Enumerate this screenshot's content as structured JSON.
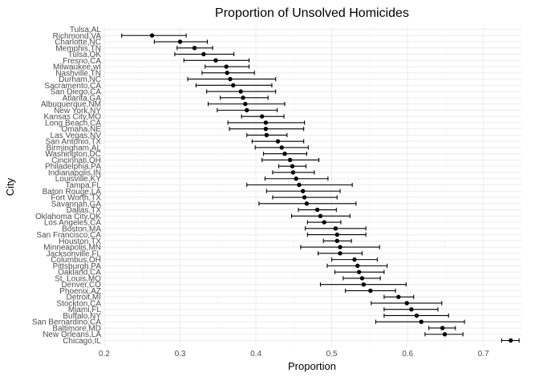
{
  "chart_data": {
    "type": "scatter",
    "title": "Proportion of Unsolved Homicides",
    "xlabel": "Proportion",
    "ylabel": "City",
    "xlim": [
      0.2,
      0.75
    ],
    "x_ticks": [
      0.2,
      0.3,
      0.4,
      0.5,
      0.6,
      0.7
    ],
    "x_tick_labels": [
      "0.2",
      "0.3",
      "0.4",
      "0.5",
      "0.6",
      "0.7"
    ],
    "grid": true,
    "cities": [
      {
        "city": "Tulsa,AL",
        "estimate": null,
        "low": null,
        "high": null
      },
      {
        "city": "Richmond,VA",
        "estimate": 0.263,
        "low": 0.223,
        "high": 0.308
      },
      {
        "city": "Charlotte,NC",
        "estimate": 0.3,
        "low": 0.266,
        "high": 0.336
      },
      {
        "city": "Memphis,TN",
        "estimate": 0.319,
        "low": 0.296,
        "high": 0.343
      },
      {
        "city": "Tulsa,OK",
        "estimate": 0.331,
        "low": 0.293,
        "high": 0.371
      },
      {
        "city": "Fresno,CA",
        "estimate": 0.347,
        "low": 0.305,
        "high": 0.391
      },
      {
        "city": "Milwaukee,wI",
        "estimate": 0.361,
        "low": 0.333,
        "high": 0.391
      },
      {
        "city": "Nashville,TN",
        "estimate": 0.362,
        "low": 0.329,
        "high": 0.398
      },
      {
        "city": "Durham,NC",
        "estimate": 0.366,
        "low": 0.31,
        "high": 0.426
      },
      {
        "city": "Sacramento,CA",
        "estimate": 0.37,
        "low": 0.321,
        "high": 0.421
      },
      {
        "city": "San Diego,CA",
        "estimate": 0.38,
        "low": 0.335,
        "high": 0.426
      },
      {
        "city": "Atlanta,GA",
        "estimate": 0.383,
        "low": 0.353,
        "high": 0.416
      },
      {
        "city": "Albuquerque,NM",
        "estimate": 0.386,
        "low": 0.337,
        "high": 0.438
      },
      {
        "city": "New York,NY",
        "estimate": 0.388,
        "low": 0.349,
        "high": 0.428
      },
      {
        "city": "Kansas City,MO",
        "estimate": 0.408,
        "low": 0.381,
        "high": 0.437
      },
      {
        "city": "Long Beach,CA",
        "estimate": 0.413,
        "low": 0.363,
        "high": 0.464
      },
      {
        "city": "Omaha,NE",
        "estimate": 0.413,
        "low": 0.365,
        "high": 0.463
      },
      {
        "city": "Las Vegas,NV",
        "estimate": 0.414,
        "low": 0.388,
        "high": 0.441
      },
      {
        "city": "San Antonio,TX",
        "estimate": 0.429,
        "low": 0.395,
        "high": 0.463
      },
      {
        "city": "Birmingham,AL",
        "estimate": 0.434,
        "low": 0.399,
        "high": 0.469
      },
      {
        "city": "Washington,DC",
        "estimate": 0.438,
        "low": 0.41,
        "high": 0.467
      },
      {
        "city": "Cincinnati,OH",
        "estimate": 0.445,
        "low": 0.408,
        "high": 0.483
      },
      {
        "city": "Philadelphia,PA",
        "estimate": 0.448,
        "low": 0.43,
        "high": 0.466
      },
      {
        "city": "Indianapolis,IN",
        "estimate": 0.449,
        "low": 0.422,
        "high": 0.477
      },
      {
        "city": "Louisville,KY",
        "estimate": 0.453,
        "low": 0.412,
        "high": 0.495
      },
      {
        "city": "Tampa,FL",
        "estimate": 0.457,
        "low": 0.388,
        "high": 0.527
      },
      {
        "city": "Baton Rouge,LA",
        "estimate": 0.462,
        "low": 0.414,
        "high": 0.511
      },
      {
        "city": "Fort Worth,TX",
        "estimate": 0.464,
        "low": 0.422,
        "high": 0.507
      },
      {
        "city": "Savannah,GA",
        "estimate": 0.467,
        "low": 0.404,
        "high": 0.532
      },
      {
        "city": "Dallas,TX",
        "estimate": 0.481,
        "low": 0.456,
        "high": 0.506
      },
      {
        "city": "Oklahoma City,OK",
        "estimate": 0.485,
        "low": 0.447,
        "high": 0.524
      },
      {
        "city": "Los Angeles,CA",
        "estimate": 0.49,
        "low": 0.468,
        "high": 0.512
      },
      {
        "city": "Boston,MA",
        "estimate": 0.505,
        "low": 0.465,
        "high": 0.545
      },
      {
        "city": "San Francisco,CA",
        "estimate": 0.507,
        "low": 0.468,
        "high": 0.545
      },
      {
        "city": "Houston,TX",
        "estimate": 0.507,
        "low": 0.489,
        "high": 0.526
      },
      {
        "city": "Minneapolis,MN",
        "estimate": 0.511,
        "low": 0.459,
        "high": 0.563
      },
      {
        "city": "Jacksonville,FL",
        "estimate": 0.511,
        "low": 0.482,
        "high": 0.54
      },
      {
        "city": "Columbus,OH",
        "estimate": 0.53,
        "low": 0.5,
        "high": 0.56
      },
      {
        "city": "Pittsburgh,PA",
        "estimate": 0.534,
        "low": 0.494,
        "high": 0.573
      },
      {
        "city": "Oakland,CA",
        "estimate": 0.536,
        "low": 0.504,
        "high": 0.569
      },
      {
        "city": "St. Louis,MO",
        "estimate": 0.54,
        "low": 0.515,
        "high": 0.564
      },
      {
        "city": "Denver,CO",
        "estimate": 0.542,
        "low": 0.485,
        "high": 0.598
      },
      {
        "city": "Phoenix,AZ",
        "estimate": 0.551,
        "low": 0.518,
        "high": 0.584
      },
      {
        "city": "Detroit,MI",
        "estimate": 0.588,
        "low": 0.569,
        "high": 0.608
      },
      {
        "city": "Stockton,CA",
        "estimate": 0.599,
        "low": 0.552,
        "high": 0.645
      },
      {
        "city": "Miami,FL",
        "estimate": 0.605,
        "low": 0.569,
        "high": 0.64
      },
      {
        "city": "Buffalo,NY",
        "estimate": 0.612,
        "low": 0.569,
        "high": 0.654
      },
      {
        "city": "San Bernardino,CA",
        "estimate": 0.618,
        "low": 0.558,
        "high": 0.675
      },
      {
        "city": "Baltimore,MD",
        "estimate": 0.646,
        "low": 0.628,
        "high": 0.663
      },
      {
        "city": "New Orleans,LA",
        "estimate": 0.649,
        "low": 0.623,
        "high": 0.673
      },
      {
        "city": "Chicago,IL",
        "estimate": 0.736,
        "low": 0.724,
        "high": 0.747
      }
    ]
  }
}
